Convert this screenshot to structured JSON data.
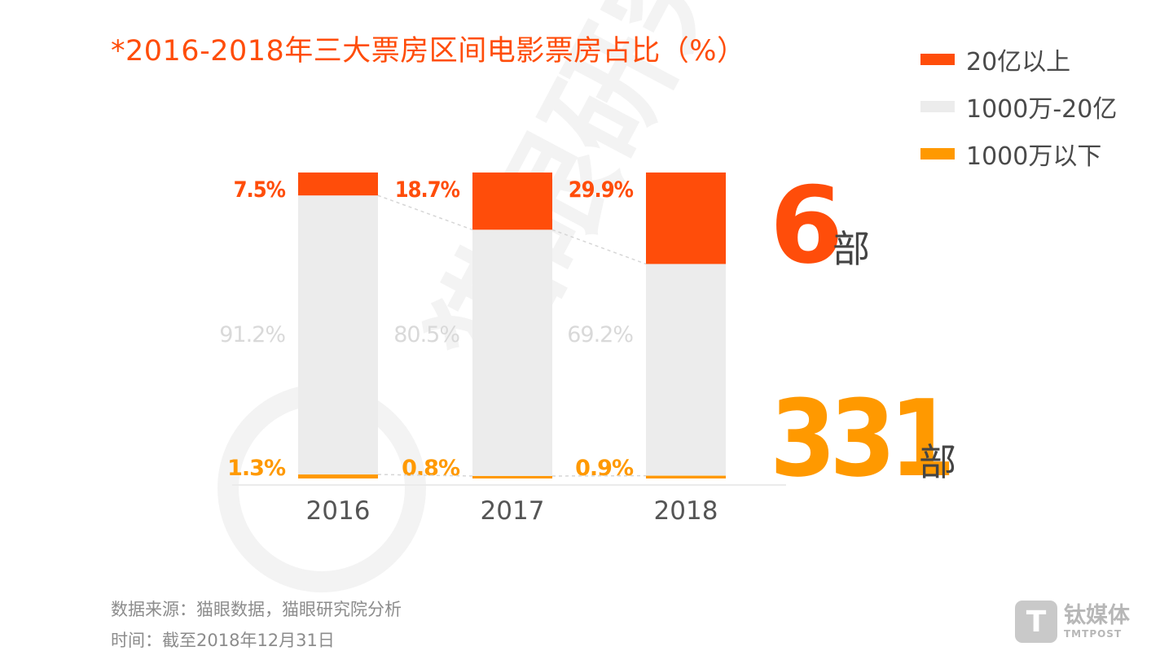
{
  "colors": {
    "top": "#ff4d0a",
    "middle": "#ececec",
    "bottom": "#ff9900",
    "middle_label": "#d9d9d9",
    "watermark": "#f3f3f3"
  },
  "watermark_text": "猫眼研究",
  "chart_data": {
    "type": "bar",
    "stacked": true,
    "title": "*2016-2018年三大票房区间电影票房占比（%）",
    "categories": [
      "2016",
      "2017",
      "2018"
    ],
    "series": [
      {
        "name": "20亿以上",
        "values": [
          7.5,
          18.7,
          29.9
        ],
        "labels": [
          "7.5%",
          "18.7%",
          "29.9%"
        ],
        "color": "#ff4d0a"
      },
      {
        "name": "1000万-20亿",
        "values": [
          91.2,
          80.5,
          69.2
        ],
        "labels": [
          "91.2%",
          "80.5%",
          "69.2%"
        ],
        "color": "#ececec"
      },
      {
        "name": "1000万以下",
        "values": [
          1.3,
          0.8,
          0.9
        ],
        "labels": [
          "1.3%",
          "0.8%",
          "0.9%"
        ],
        "color": "#ff9900"
      }
    ],
    "ylim": [
      0,
      100
    ],
    "legend_position": "top-right",
    "annotations": [
      {
        "number": "6",
        "unit": "部",
        "series": "20亿以上",
        "color": "#ff4d0a"
      },
      {
        "number": "331",
        "unit": "部",
        "series": "1000万以下",
        "color": "#ff9900"
      }
    ]
  },
  "footer": {
    "source": "数据来源：猫眼数据，猫眼研究院分析",
    "time": "时间：截至2018年12月31日"
  },
  "logo": {
    "glyph": "T",
    "name_cn": "钛媒体",
    "name_en": "TMTPOST"
  }
}
